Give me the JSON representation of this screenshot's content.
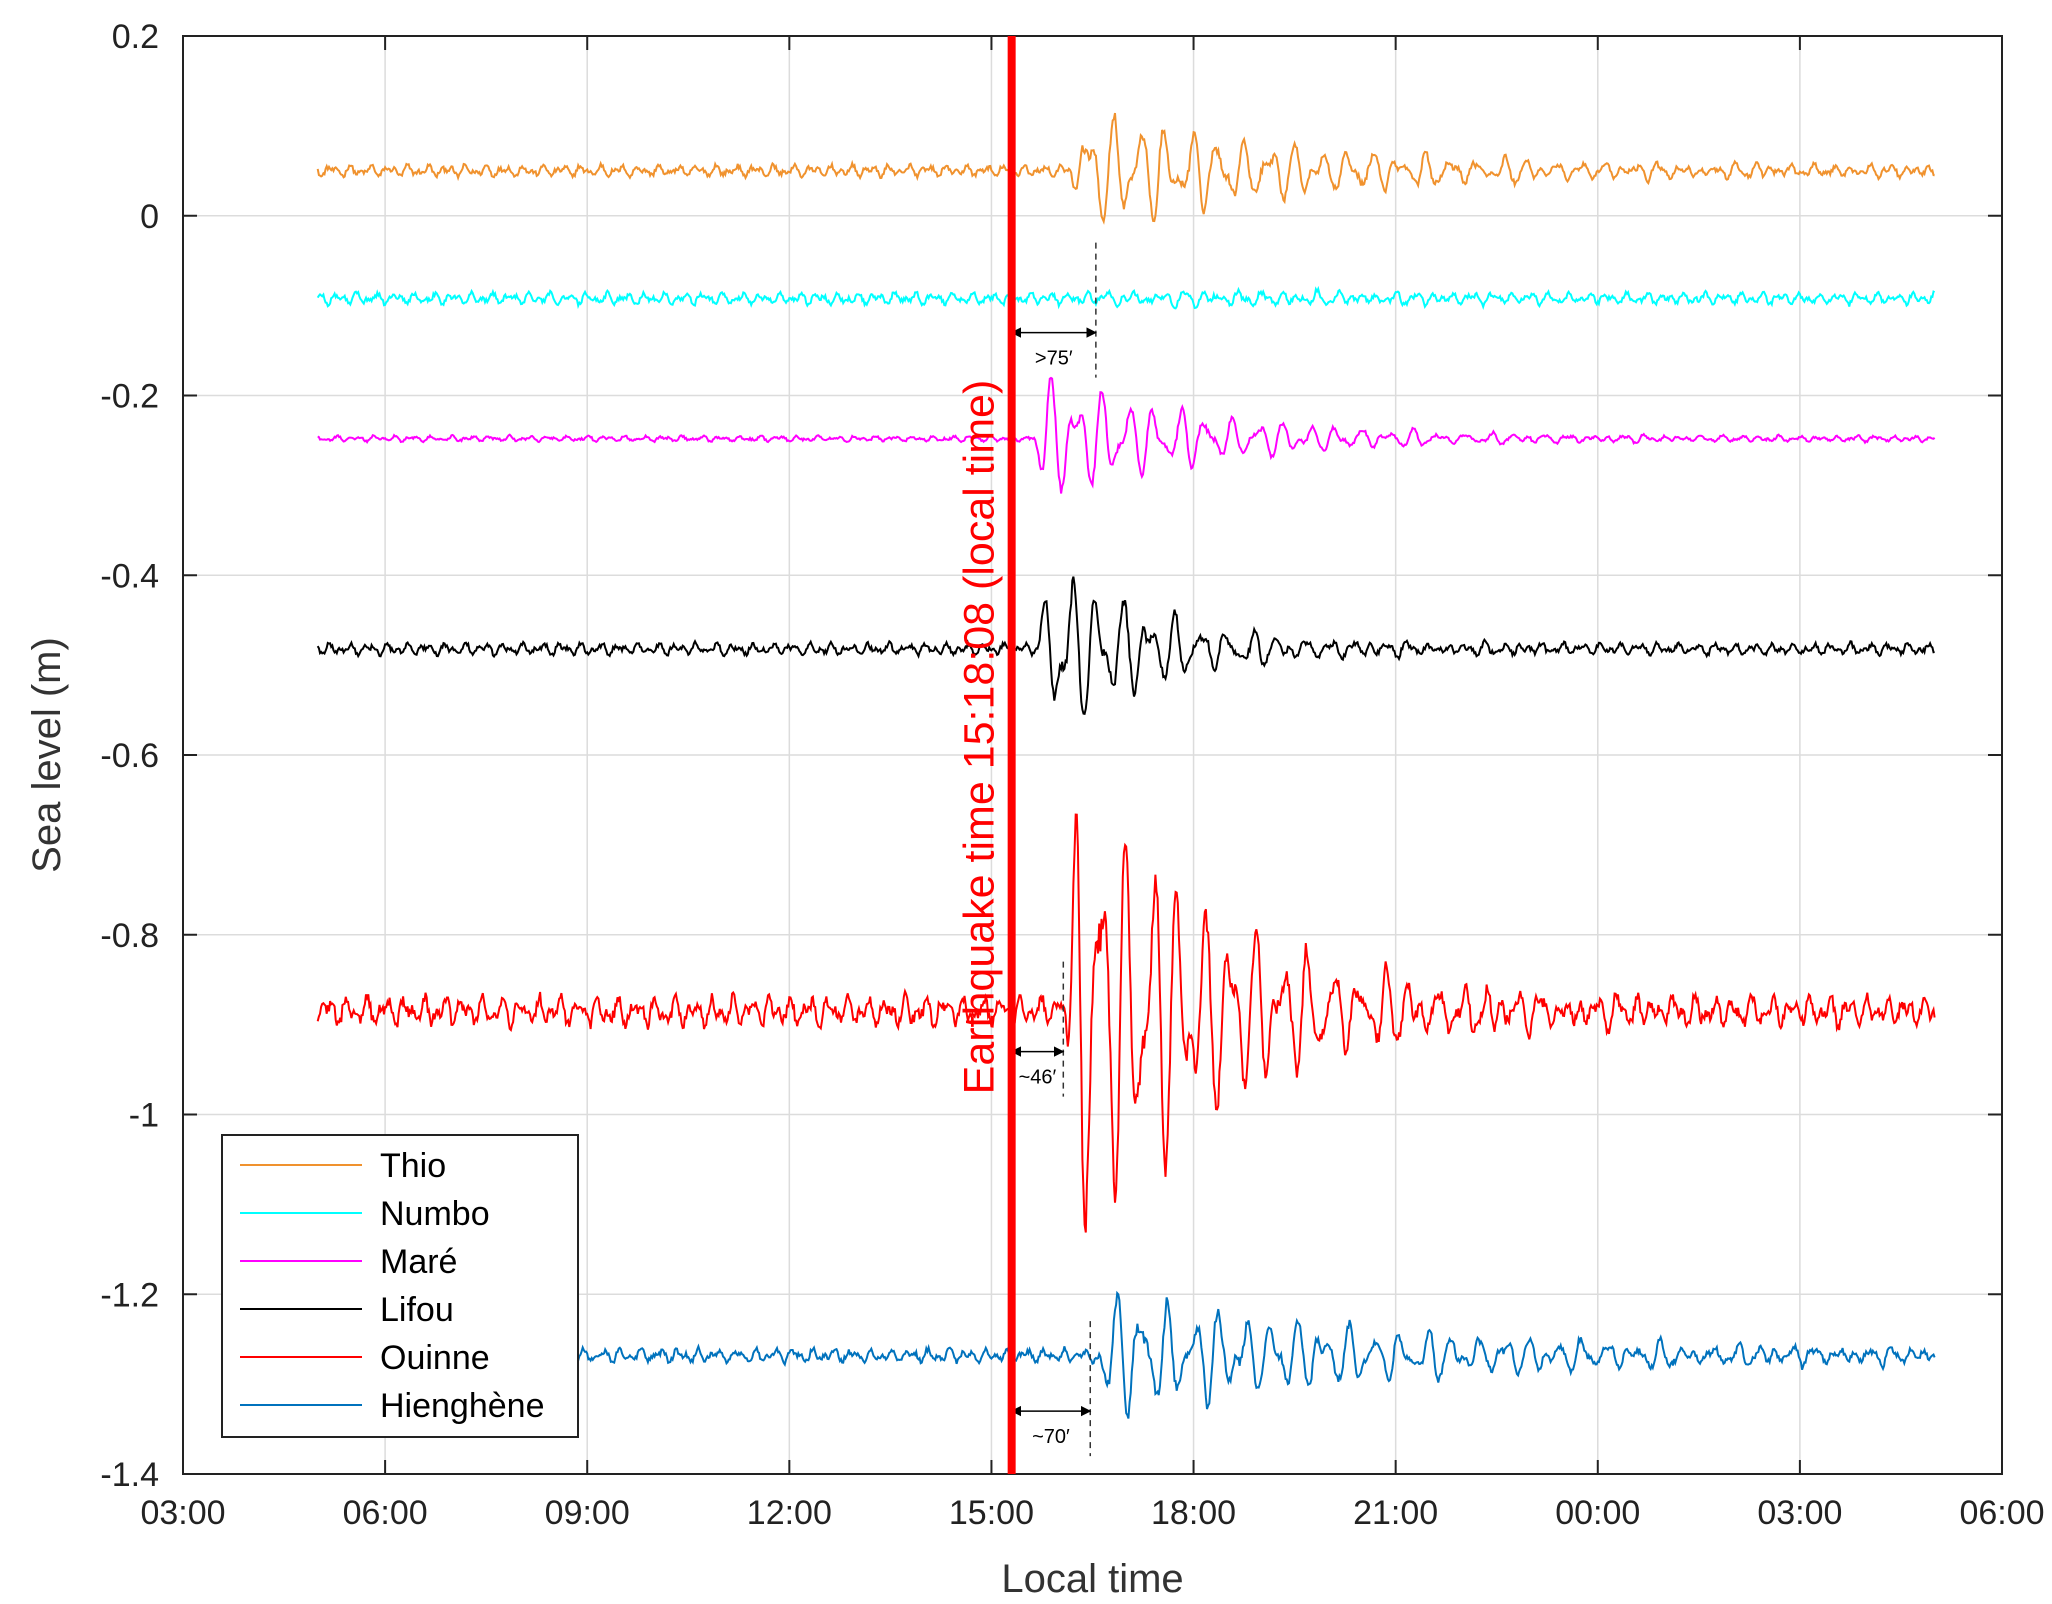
{
  "chart_data": {
    "type": "line",
    "xlabel": "Local time",
    "ylabel": "Sea level (m)",
    "ylim": [
      -1.4,
      0.2
    ],
    "xlim": [
      "03:00",
      "06:00 (+1 day)"
    ],
    "x_ticks": [
      "03:00",
      "06:00",
      "09:00",
      "12:00",
      "15:00",
      "18:00",
      "21:00",
      "00:00",
      "03:00",
      "06:00"
    ],
    "y_ticks": [
      "0.2",
      "0",
      "-0.2",
      "-0.4",
      "-0.6",
      "-0.8",
      "-1",
      "-1.2",
      "-1.4"
    ],
    "grid": true,
    "legend_position": "bottom-left",
    "earthquake": {
      "time": "15:18",
      "label": "Earthquake time 15:18:08 (local time)",
      "color": "#ff0000"
    },
    "series": [
      {
        "name": "Thio",
        "color": "#f0922e",
        "baseline": 0.05,
        "noise_amp": 0.006,
        "arrival": "16:10",
        "peak_amp": 0.07,
        "decay_hours": 3.5
      },
      {
        "name": "Numbo",
        "color": "#00ffff",
        "baseline": -0.092,
        "noise_amp": 0.006,
        "arrival": "16:35",
        "peak_amp": 0.008,
        "decay_hours": 4.0
      },
      {
        "name": "Maré",
        "color": "#ff00ff",
        "baseline": -0.248,
        "noise_amp": 0.003,
        "arrival": "15:35",
        "peak_amp": 0.075,
        "decay_hours": 2.5
      },
      {
        "name": "Lifou",
        "color": "#000000",
        "baseline": -0.482,
        "noise_amp": 0.006,
        "arrival": "15:40",
        "peak_amp": 0.12,
        "decay_hours": 1.6
      },
      {
        "name": "Ouinne",
        "color": "#ff0000",
        "baseline": -0.885,
        "noise_amp": 0.015,
        "arrival": "16:05",
        "peak_amp": 0.3,
        "decay_hours": 2.2
      },
      {
        "name": "Hienghène",
        "color": "#0072bd",
        "baseline": -1.268,
        "noise_amp": 0.007,
        "arrival": "16:30",
        "peak_amp": 0.07,
        "decay_hours": 4.5
      }
    ],
    "x_data_start": "05:00",
    "x_data_end": "05:00 (+1 day)",
    "annotations": [
      {
        "text": ">75′",
        "from": "15:18",
        "to": "16:33",
        "level": -0.13
      },
      {
        "text": "~46′",
        "from": "15:18",
        "to": "16:04",
        "level": -0.93
      },
      {
        "text": "~70′",
        "from": "15:18",
        "to": "16:28",
        "level": -1.33
      }
    ]
  }
}
